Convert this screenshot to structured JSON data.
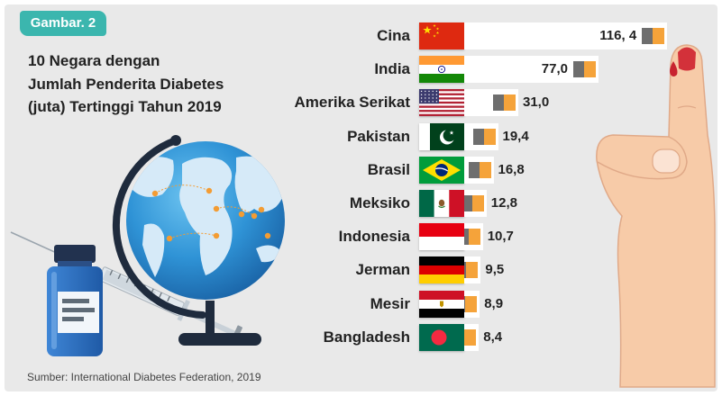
{
  "badge": "Gambar. 2",
  "source": "Sumber: International Diabetes Federation, 2019",
  "colors": {
    "background": "#e9e9e9",
    "badge": "#3bb6ae",
    "text": "#222222",
    "bar": "#ffffff",
    "cap_gray": "#6e6e6e",
    "cap_orange": "#f5a33a"
  },
  "illustrations": [
    "globe-icon",
    "syringe-icon",
    "vial-icon",
    "hand-icon",
    "blood-drop-icon"
  ],
  "chart_data": {
    "type": "bar",
    "title_lines": [
      "10 Negara dengan",
      "Jumlah Penderita Diabetes",
      "(juta) Tertinggi Tahun 2019"
    ],
    "categories": [
      "Cina",
      "India",
      "Amerika Serikat",
      "Pakistan",
      "Brasil",
      "Meksiko",
      "Indonesia",
      "Jerman",
      "Mesir",
      "Bangladesh"
    ],
    "values": [
      116.4,
      77.0,
      31.0,
      19.4,
      16.8,
      12.8,
      10.7,
      9.5,
      8.9,
      8.4
    ],
    "value_labels": [
      "116, 4",
      "77,0",
      "31,0",
      "19,4",
      "16,8",
      "12,8",
      "10,7",
      "9,5",
      "8,9",
      "8,4"
    ],
    "flags": [
      "china-flag",
      "india-flag",
      "usa-flag",
      "pakistan-flag",
      "brazil-flag",
      "mexico-flag",
      "indonesia-flag",
      "germany-flag",
      "egypt-flag",
      "bangladesh-flag"
    ],
    "grid": false
  }
}
